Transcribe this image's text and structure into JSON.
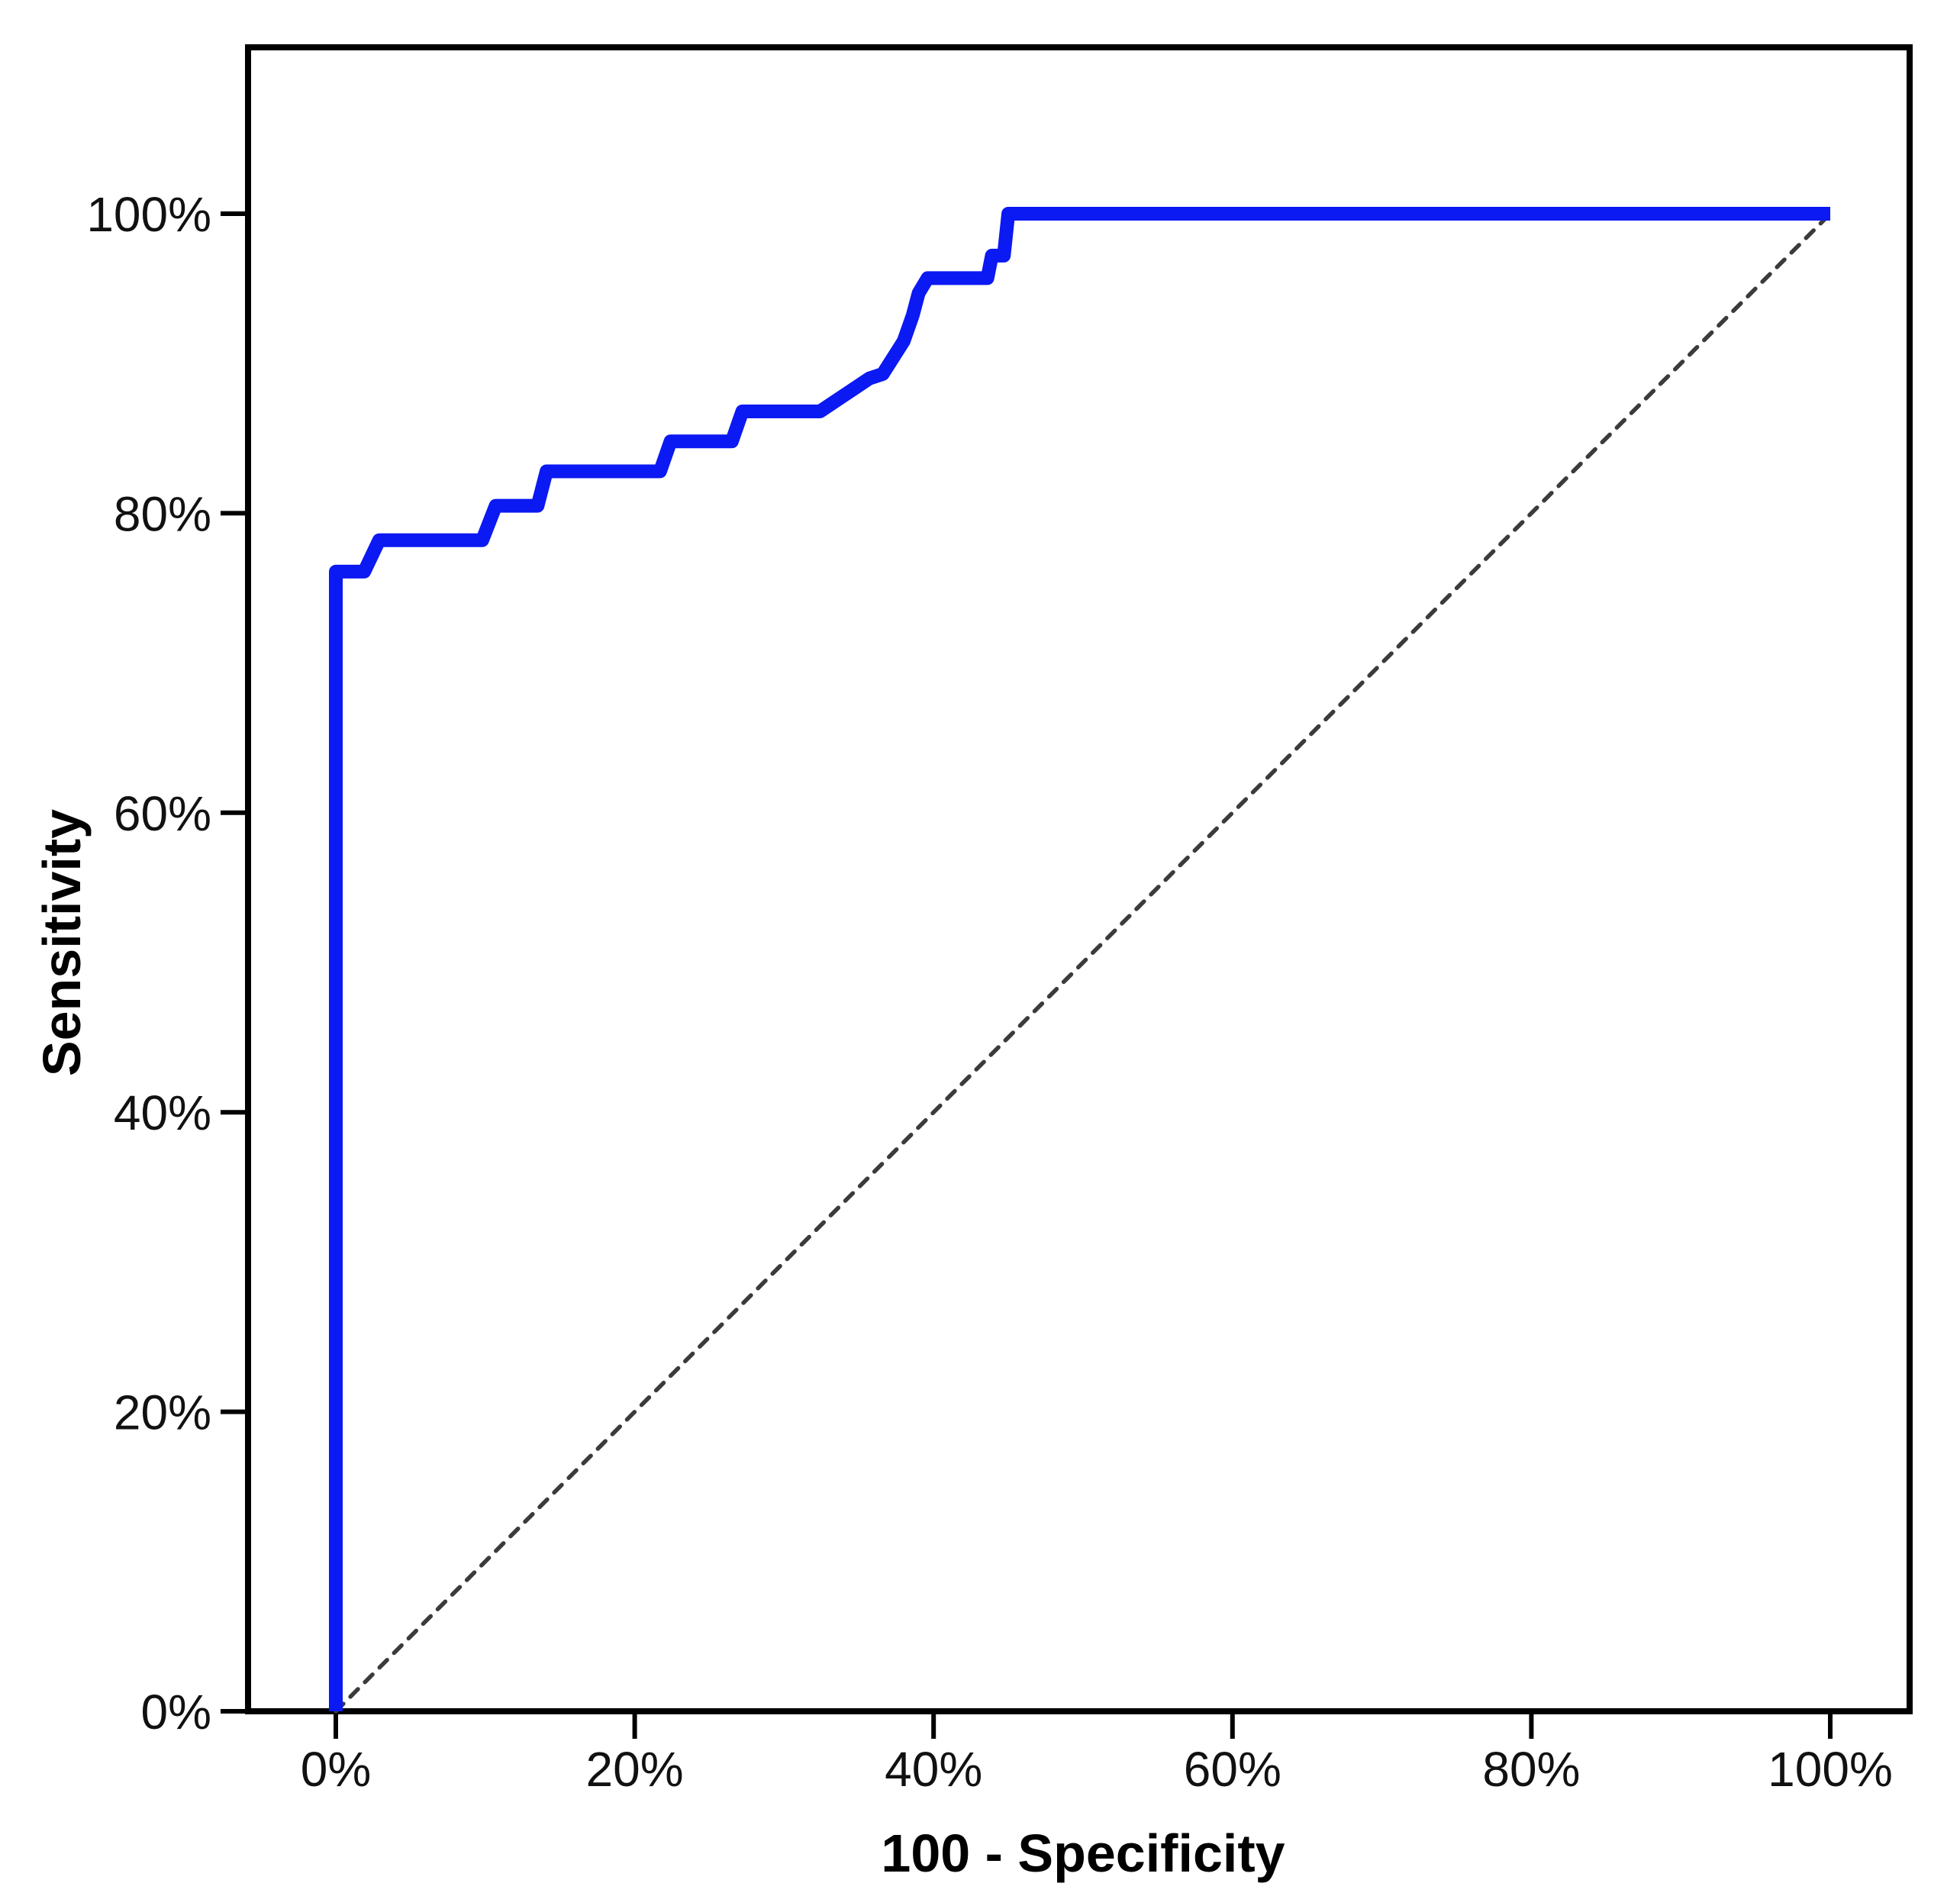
{
  "figure": {
    "background": "#ffffff",
    "frame_color": "#000000"
  },
  "chart_data": {
    "type": "line",
    "subtype": "roc-curve",
    "title": "",
    "xlabel": "100 - Specificity",
    "ylabel": "Sensitivity",
    "xlim": [
      0,
      100
    ],
    "ylim": [
      0,
      100
    ],
    "grid": false,
    "legend": "none",
    "x_ticks": [
      {
        "value": 0,
        "label": "0%"
      },
      {
        "value": 20,
        "label": "20%"
      },
      {
        "value": 40,
        "label": "40%"
      },
      {
        "value": 60,
        "label": "60%"
      },
      {
        "value": 80,
        "label": "80%"
      },
      {
        "value": 100,
        "label": "100%"
      }
    ],
    "y_ticks": [
      {
        "value": 0,
        "label": "0%"
      },
      {
        "value": 20,
        "label": "20%"
      },
      {
        "value": 40,
        "label": "40%"
      },
      {
        "value": 60,
        "label": "60%"
      },
      {
        "value": 80,
        "label": "80%"
      },
      {
        "value": 100,
        "label": "100%"
      }
    ],
    "series": [
      {
        "name": "ROC curve",
        "color": "#0b19f2",
        "style": "solid",
        "stroke_width": 18,
        "points": [
          [
            0,
            0
          ],
          [
            0,
            76.1
          ],
          [
            1.9,
            76.1
          ],
          [
            2.9,
            78.2
          ],
          [
            9.8,
            78.2
          ],
          [
            10.7,
            80.5
          ],
          [
            13.5,
            80.5
          ],
          [
            14.1,
            82.8
          ],
          [
            21.7,
            82.8
          ],
          [
            22.4,
            84.8
          ],
          [
            26.5,
            84.8
          ],
          [
            27.2,
            86.8
          ],
          [
            32.4,
            86.8
          ],
          [
            35.7,
            89.0
          ],
          [
            36.6,
            89.3
          ],
          [
            38.0,
            91.5
          ],
          [
            38.6,
            93.2
          ],
          [
            39.0,
            94.7
          ],
          [
            39.6,
            95.7
          ],
          [
            43.6,
            95.7
          ],
          [
            43.9,
            97.2
          ],
          [
            44.7,
            97.2
          ],
          [
            45.0,
            100
          ],
          [
            100,
            100
          ]
        ]
      },
      {
        "name": "Reference diagonal",
        "color": "#3b3b3b",
        "style": "dashed",
        "stroke_width": 5.5,
        "points": [
          [
            0,
            0
          ],
          [
            100,
            100
          ]
        ]
      }
    ]
  }
}
